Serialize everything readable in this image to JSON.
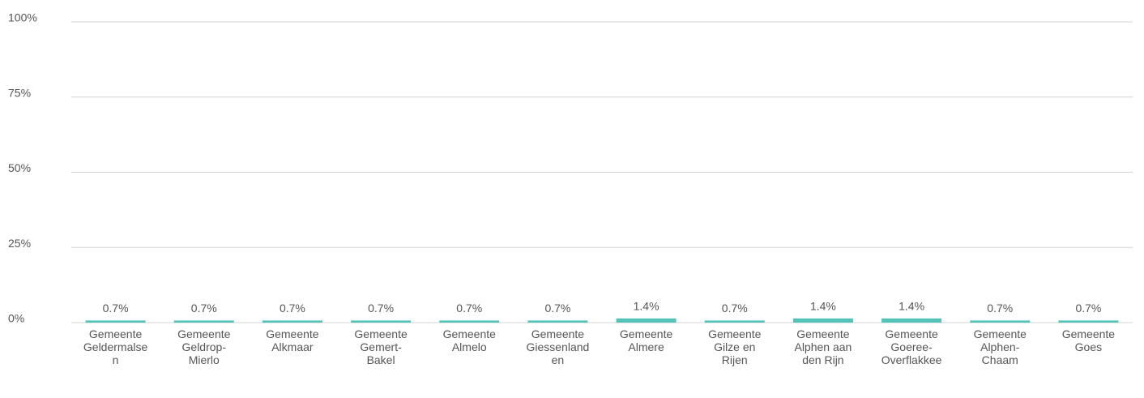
{
  "chart_data": {
    "type": "bar",
    "categories": [
      "Gemeente Geldermalsen",
      "Gemeente Geldrop-Mierlo",
      "Gemeente Alkmaar",
      "Gemeente Gemert-Bakel",
      "Gemeente Almelo",
      "Gemeente Giessenlanden",
      "Gemeente Almere",
      "Gemeente Gilze en Rijen",
      "Gemeente Alphen aan den Rijn",
      "Gemeente Goeree-Overflakkee",
      "Gemeente Alphen-Chaam",
      "Gemeente Goes"
    ],
    "values": [
      0.7,
      0.7,
      0.7,
      0.7,
      0.7,
      0.7,
      1.4,
      0.7,
      1.4,
      1.4,
      0.7,
      0.7
    ],
    "value_labels": [
      "0.7%",
      "0.7%",
      "0.7%",
      "0.7%",
      "0.7%",
      "0.7%",
      "1.4%",
      "0.7%",
      "1.4%",
      "1.4%",
      "0.7%",
      "0.7%"
    ],
    "color": "#55c2b8",
    "ylim": [
      0,
      100
    ],
    "yticks": [
      {
        "value": 0,
        "label": "0%"
      },
      {
        "value": 25,
        "label": "25%"
      },
      {
        "value": 50,
        "label": "50%"
      },
      {
        "value": 75,
        "label": "75%"
      },
      {
        "value": 100,
        "label": "100%"
      }
    ],
    "grid": true
  }
}
